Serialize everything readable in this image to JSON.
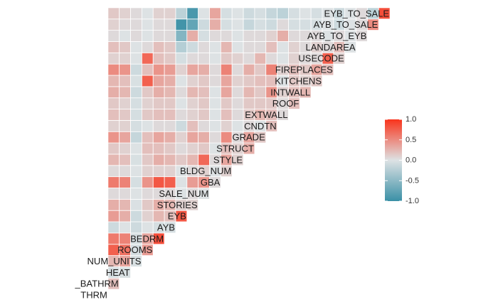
{
  "chart_data": {
    "type": "heatmap",
    "title": "",
    "variables": [
      "THRM",
      "_BATHRM",
      "HEAT",
      "NUM_UNITS",
      "ROOMS",
      "BEDRM",
      "AYB",
      "EYB",
      "STORIES",
      "SALE_NUM",
      "GBA",
      "BLDG_NUM",
      "STYLE",
      "STRUCT",
      "GRADE",
      "CNDTN",
      "EXTWALL",
      "ROOF",
      "INTWALL",
      "KITCHENS",
      "FIREPLACES",
      "USECODE",
      "LANDAREA",
      "AYB_TO_EYB",
      "AYB_TO_SALE",
      "EYB_TO_SALE"
    ],
    "values": [
      [],
      [
        0.2
      ],
      [
        -0.05,
        -0.03
      ],
      [
        0.25,
        0.35,
        -0.03
      ],
      [
        0.75,
        0.65,
        -0.05,
        0.4
      ],
      [
        0.6,
        0.55,
        -0.05,
        0.35,
        0.85
      ],
      [
        -0.1,
        0.0,
        -0.1,
        0.0,
        -0.05,
        -0.05
      ],
      [
        0.4,
        0.3,
        -0.1,
        0.1,
        0.25,
        0.2,
        0.8
      ],
      [
        0.3,
        0.25,
        -0.02,
        0.15,
        0.3,
        0.25,
        0.1,
        0.1
      ],
      [
        0.05,
        0.05,
        0.0,
        0.05,
        0.05,
        0.05,
        0.0,
        0.05,
        0.0
      ],
      [
        0.6,
        0.55,
        -0.05,
        0.45,
        0.8,
        0.75,
        0.0,
        0.4,
        0.45,
        0.05
      ],
      [
        0.05,
        0.05,
        0.0,
        0.1,
        0.1,
        0.1,
        0.0,
        0.05,
        0.1,
        0.0,
        0.1
      ],
      [
        0.25,
        0.2,
        -0.03,
        0.15,
        0.3,
        0.25,
        0.15,
        0.25,
        0.7,
        0.05,
        0.35,
        0.1
      ],
      [
        0.15,
        0.1,
        0.0,
        0.2,
        0.2,
        0.15,
        0.05,
        0.1,
        0.15,
        0.0,
        0.2,
        0.1,
        0.3
      ],
      [
        0.45,
        0.35,
        -0.15,
        0.2,
        0.35,
        0.3,
        0.1,
        0.35,
        0.3,
        0.05,
        0.5,
        0.05,
        0.35,
        0.15
      ],
      [
        0.1,
        0.1,
        -0.05,
        0.0,
        0.05,
        0.05,
        -0.1,
        0.2,
        0.05,
        0.0,
        0.1,
        0.0,
        0.05,
        0.0,
        0.2
      ],
      [
        0.2,
        0.15,
        -0.05,
        0.15,
        0.2,
        0.2,
        0.05,
        0.1,
        0.15,
        0.0,
        0.2,
        0.05,
        0.15,
        0.25,
        0.2,
        0.05
      ],
      [
        0.15,
        0.1,
        -0.05,
        0.1,
        0.15,
        0.15,
        0.0,
        0.1,
        0.15,
        0.0,
        0.15,
        0.05,
        0.15,
        0.15,
        0.15,
        0.05,
        0.2
      ],
      [
        0.3,
        0.25,
        -0.1,
        0.15,
        0.3,
        0.25,
        0.05,
        0.25,
        0.2,
        0.0,
        0.35,
        0.05,
        0.25,
        0.15,
        0.45,
        0.1,
        0.2,
        0.25
      ],
      [
        0.25,
        0.2,
        -0.03,
        0.75,
        0.35,
        0.3,
        0.0,
        0.1,
        0.15,
        0.05,
        0.35,
        0.1,
        0.15,
        0.2,
        0.2,
        0.0,
        0.15,
        0.1,
        0.15
      ],
      [
        0.5,
        0.45,
        -0.1,
        0.2,
        0.45,
        0.4,
        0.1,
        0.35,
        0.3,
        0.05,
        0.55,
        0.05,
        0.3,
        0.15,
        0.55,
        0.1,
        0.2,
        0.15,
        0.35,
        0.2
      ],
      [
        0.1,
        0.1,
        0.0,
        0.7,
        0.2,
        0.15,
        -0.05,
        0.05,
        0.05,
        0.0,
        0.15,
        0.1,
        0.05,
        0.25,
        0.05,
        0.0,
        0.1,
        0.05,
        0.05,
        0.75,
        0.1
      ],
      [
        0.2,
        0.15,
        0.0,
        0.05,
        0.2,
        0.15,
        -0.25,
        -0.1,
        0.05,
        0.0,
        0.25,
        0.0,
        0.05,
        0.05,
        0.2,
        0.0,
        0.1,
        0.05,
        0.1,
        0.05,
        0.2,
        0.0
      ],
      [
        0.05,
        0.0,
        0.05,
        0.0,
        0.05,
        0.05,
        -0.55,
        0.3,
        -0.05,
        0.05,
        0.05,
        0.0,
        0.05,
        0.05,
        0.1,
        0.3,
        0.05,
        0.05,
        0.05,
        0.0,
        0.05,
        0.0,
        0.05
      ],
      [
        0.1,
        0.05,
        0.05,
        0.0,
        0.05,
        0.05,
        -0.95,
        -0.75,
        -0.1,
        0.3,
        -0.05,
        0.0,
        -0.15,
        -0.05,
        -0.1,
        0.05,
        -0.05,
        -0.05,
        -0.05,
        0.0,
        -0.1,
        0.0,
        0.05,
        0.5
      ],
      [
        0.15,
        0.1,
        0.05,
        0.0,
        0.1,
        0.1,
        -0.2,
        -0.9,
        0.0,
        0.35,
        -0.05,
        0.0,
        -0.1,
        -0.05,
        -0.15,
        -0.2,
        -0.05,
        0.0,
        -0.05,
        0.0,
        -0.1,
        0.0,
        0.05,
        -0.2,
        0.85
      ]
    ],
    "legend": {
      "ticks": [
        1.0,
        0.5,
        0.0,
        -0.5,
        -1.0
      ],
      "tick_labels": [
        "1.0",
        "0.5",
        "0.0",
        "-0.5",
        "-1.0"
      ],
      "position": "right",
      "colors": {
        "low": "#3a90a6",
        "mid": "#dde2e4",
        "high": "#f9341c"
      }
    }
  }
}
